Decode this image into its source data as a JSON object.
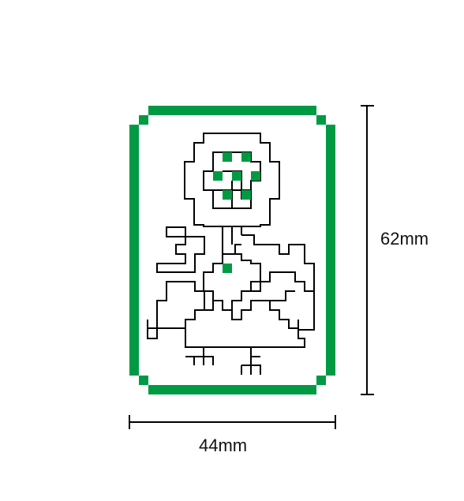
{
  "card": {
    "border_color": "#009a44",
    "pixel_color": "#009a44",
    "line_color": "#000000"
  },
  "dimensions": {
    "height_label": "62mm",
    "width_label": "44mm"
  },
  "icons": {
    "flower": "pixel-flower-icon",
    "bird": "pixel-bird-icon"
  }
}
